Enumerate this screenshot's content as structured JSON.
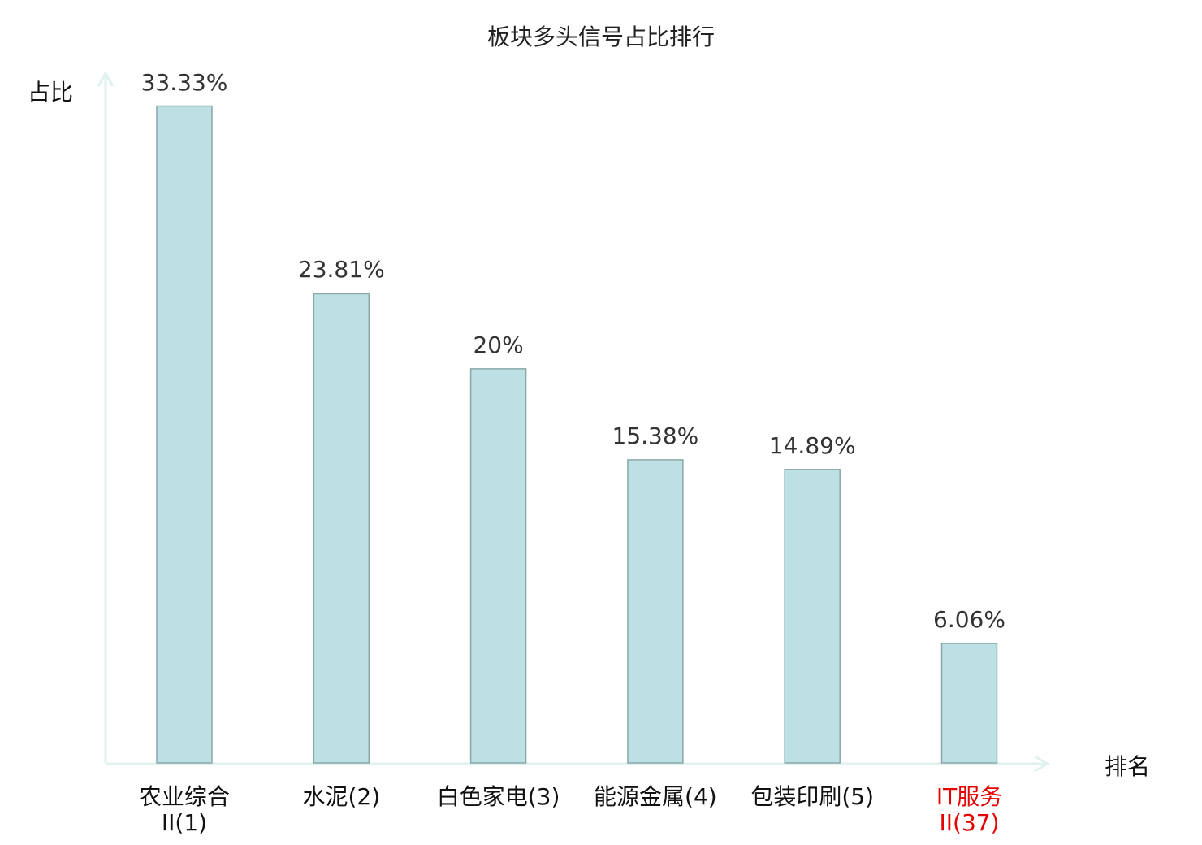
{
  "chart_data": {
    "type": "bar",
    "title": "板块多头信号占比排行",
    "xlabel": "排名",
    "ylabel": "占比",
    "categories": [
      "农业综合II(1)",
      "水泥(2)",
      "白色家电(3)",
      "能源金属(4)",
      "包装印刷(5)",
      "IT服务II(37)"
    ],
    "values": [
      33.33,
      23.81,
      20,
      15.38,
      14.89,
      6.06
    ],
    "data_labels": [
      "33.33%",
      "23.81%",
      "20%",
      "15.38%",
      "14.89%",
      "6.06%"
    ],
    "highlight_index": 5,
    "ylim": [
      0,
      35
    ],
    "grid": false,
    "colors": {
      "bar_fill": "#bce0e3",
      "bar_stroke": "#8aa8a8",
      "axis": "#dff2ef",
      "highlight_label": "#e60000"
    }
  }
}
